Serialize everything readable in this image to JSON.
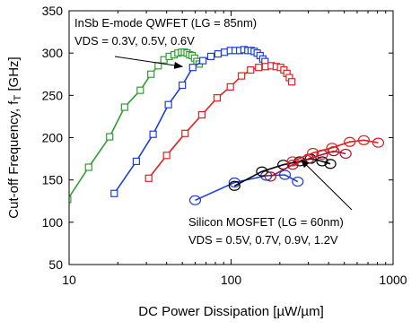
{
  "chart_data": {
    "type": "line",
    "title": "",
    "xlabel": "DC Power Dissipation [µW/µm]",
    "ylabel": "Cut-off Frequency, f",
    "ylabel_sub": "T",
    "ylabel_unit": " [GHz]",
    "x_scale": "log",
    "xlim": [
      10,
      1000
    ],
    "ylim": [
      50,
      350
    ],
    "x_ticks": [
      10,
      100,
      1000
    ],
    "y_ticks": [
      50,
      100,
      150,
      200,
      250,
      300,
      350
    ],
    "grid": false,
    "legend": "none",
    "annotations": [
      {
        "lines": [
          "InSb E-mode QWFET (LG = 85nm)",
          "VDS = 0.3V, 0.5V, 0.6V"
        ],
        "arrow_to": [
          50,
          284
        ]
      },
      {
        "lines": [
          "Silicon MOSFET (LG = 60nm)",
          "VDS = 0.5V, 0.7V, 0.9V, 1.2V"
        ],
        "arrow_to": [
          270,
          174
        ]
      }
    ],
    "series": [
      {
        "group": "InSb",
        "color": "#2e9e2e",
        "marker": "square",
        "x": [
          9.8,
          13.2,
          17.8,
          22,
          27.5,
          32,
          35.5,
          38.5,
          41.5,
          44.5,
          47,
          49.5,
          51.5,
          53.5,
          55.5,
          57.5,
          59.5,
          61.5,
          63.5
        ],
        "y": [
          127,
          165,
          201,
          236,
          256,
          275,
          285,
          292,
          296,
          298,
          300,
          301,
          301,
          300,
          298,
          297,
          294,
          290,
          287
        ]
      },
      {
        "group": "InSb",
        "color": "#1c3fd6",
        "marker": "square",
        "x": [
          19,
          26,
          33,
          41,
          50,
          58,
          67,
          75,
          83,
          91,
          99,
          106,
          113,
          120,
          127,
          133,
          139,
          145,
          151,
          157,
          162
        ],
        "y": [
          134,
          172,
          204,
          239,
          262,
          283,
          291,
          296,
          299,
          301,
          303,
          303,
          303,
          304,
          303,
          303,
          302,
          300,
          297,
          293,
          290
        ]
      },
      {
        "group": "InSb",
        "color": "#e02020",
        "marker": "square",
        "x": [
          31,
          40,
          52,
          66,
          82,
          99,
          116,
          132,
          148,
          163,
          177,
          190,
          202,
          212,
          221,
          229,
          237
        ],
        "y": [
          152,
          179,
          205,
          227,
          247,
          260,
          273,
          280,
          283,
          284,
          285,
          284,
          283,
          280,
          276,
          271,
          266
        ]
      },
      {
        "group": "Silicon",
        "color": "#1c3fd6",
        "marker": "circle",
        "x": [
          60,
          105,
          165,
          215,
          258
        ],
        "y": [
          126,
          147,
          155,
          156,
          148
        ]
      },
      {
        "group": "Silicon",
        "color": "#000000",
        "marker": "circle",
        "x": [
          105,
          155,
          210,
          265,
          310,
          365,
          410
        ],
        "y": [
          143,
          160,
          168,
          172,
          175,
          172,
          169
        ]
      },
      {
        "group": "Silicon",
        "color": "#b01030",
        "marker": "circle",
        "x": [
          175,
          240,
          300,
          365,
          430,
          510
        ],
        "y": [
          154,
          168,
          175,
          180,
          184,
          181
        ]
      },
      {
        "group": "Silicon",
        "color": "#e02020",
        "marker": "circle",
        "x": [
          240,
          320,
          420,
          540,
          660,
          810
        ],
        "y": [
          172,
          182,
          188,
          195,
          197,
          194
        ]
      }
    ]
  }
}
